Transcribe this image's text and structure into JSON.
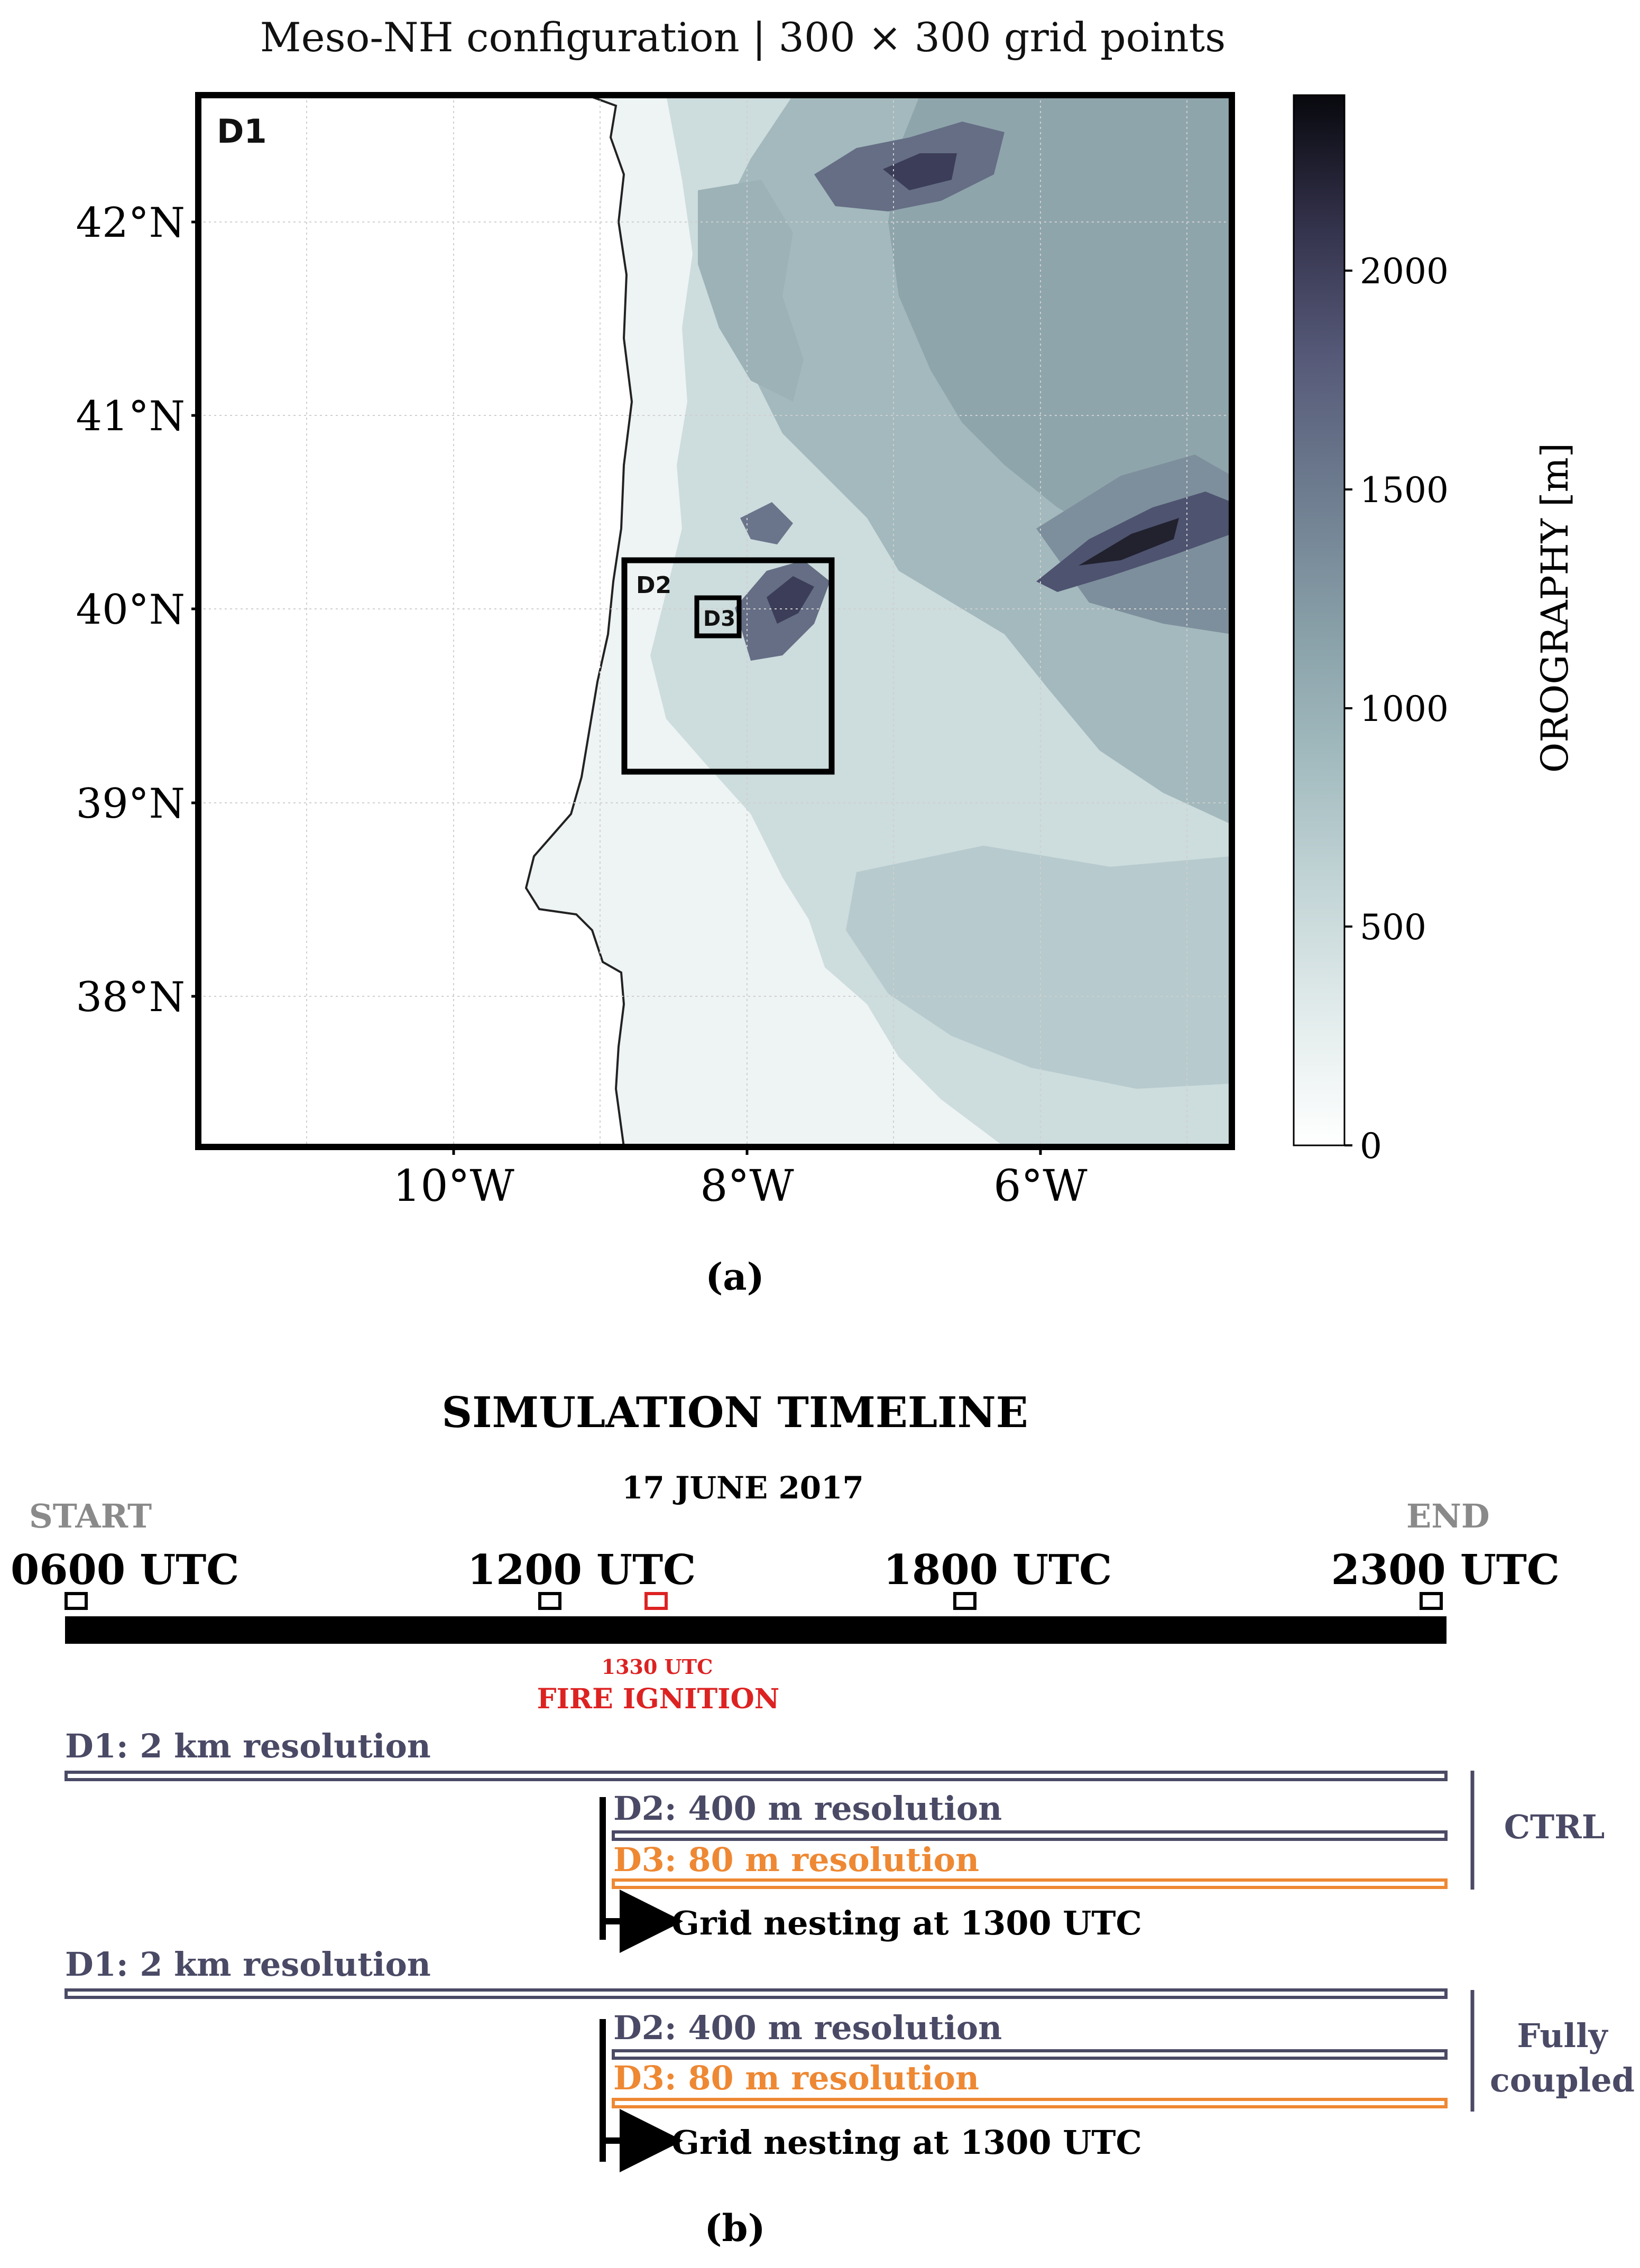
{
  "map": {
    "title": "Meso-NH configuration | 300 × 300 grid points",
    "panel_label": "(a)",
    "domain_labels": {
      "d1": "D1",
      "d2": "D2",
      "d3": "D3"
    },
    "lat_ticks": [
      "42°N",
      "41°N",
      "40°N",
      "39°N",
      "38°N"
    ],
    "lon_ticks": [
      "10°W",
      "8°W",
      "6°W"
    ],
    "colorbar": {
      "label": "OROGRAPHY [m]",
      "ticks": [
        "2000",
        "1500",
        "1000",
        "500",
        "0"
      ],
      "min": 0,
      "max": 2400,
      "colors": [
        "#ffffff",
        "#e6eeee",
        "#c7d8d9",
        "#a9c1c4",
        "#8ea9ae",
        "#7a8f99",
        "#626f84",
        "#4a4e6a",
        "#2e2d44",
        "#0b0b14"
      ]
    },
    "colors": {
      "sea": "#ffffff",
      "frame": "#000000"
    }
  },
  "timeline": {
    "title": "SIMULATION TIMELINE",
    "date": "17 JUNE 2017",
    "start_label": "START",
    "end_label": "END",
    "time_labels": [
      "0600 UTC",
      "1200 UTC",
      "1800 UTC",
      "2300 UTC"
    ],
    "ignition_time": "1330 UTC",
    "ignition_label": "FIRE IGNITION",
    "panel_label": "(b)",
    "experiments": [
      {
        "name": "CTRL",
        "d1": "D1: 2 km resolution",
        "d2": "D2: 400 m resolution",
        "d3": "D3: 80 m resolution",
        "nesting": "Grid nesting at 1300 UTC"
      },
      {
        "name": "Fully coupled",
        "name_line1": "Fully",
        "name_line2": "coupled",
        "d1": "D1: 2 km resolution",
        "d2": "D2: 400 m resolution",
        "d3": "D3: 80 m resolution",
        "nesting": "Grid nesting at 1300 UTC"
      }
    ],
    "colors": {
      "d1_d2": "#4a4a66",
      "d3": "#ee8833",
      "ignition": "#dd2222",
      "muted": "#8a8a8a",
      "bar": "#000000"
    }
  }
}
